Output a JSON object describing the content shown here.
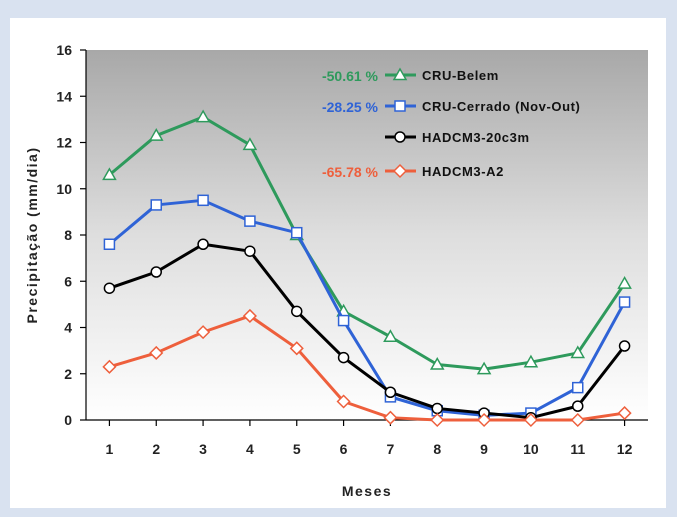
{
  "chart_data": {
    "type": "line",
    "title": "",
    "xlabel": "Meses",
    "ylabel": "Precipitação (mm/dia)",
    "x": [
      1,
      2,
      3,
      4,
      5,
      6,
      7,
      8,
      9,
      10,
      11,
      12
    ],
    "xlim": [
      0.5,
      12.5
    ],
    "ylim": [
      0,
      16
    ],
    "yticks": [
      0,
      2,
      4,
      6,
      8,
      10,
      12,
      14,
      16
    ],
    "grid": false,
    "legend_position": "top-right",
    "background": "gray gradient",
    "series": [
      {
        "name": "CRU-Belem",
        "color": "#2e9a5c",
        "marker": "triangle",
        "annotation": "-50.61 %",
        "values": [
          10.6,
          12.3,
          13.1,
          11.9,
          8.0,
          4.7,
          3.6,
          2.4,
          2.2,
          2.5,
          2.9,
          5.9
        ]
      },
      {
        "name": "CRU-Cerrado (Nov-Out)",
        "color": "#2f63d6",
        "marker": "square",
        "annotation": "-28.25 %",
        "values": [
          7.6,
          9.3,
          9.5,
          8.6,
          8.1,
          4.3,
          1.0,
          0.4,
          0.2,
          0.3,
          1.4,
          5.1
        ]
      },
      {
        "name": "HADCM3-20c3m",
        "color": "#000000",
        "marker": "circle",
        "annotation": "",
        "values": [
          5.7,
          6.4,
          7.6,
          7.3,
          4.7,
          2.7,
          1.2,
          0.5,
          0.3,
          0.1,
          0.6,
          3.2
        ]
      },
      {
        "name": "HADCM3-A2",
        "color": "#ee5f3c",
        "marker": "diamond",
        "annotation": "-65.78 %",
        "values": [
          2.3,
          2.9,
          3.8,
          4.5,
          3.1,
          0.8,
          0.1,
          0.0,
          0.0,
          0.0,
          0.0,
          0.3
        ]
      }
    ]
  }
}
